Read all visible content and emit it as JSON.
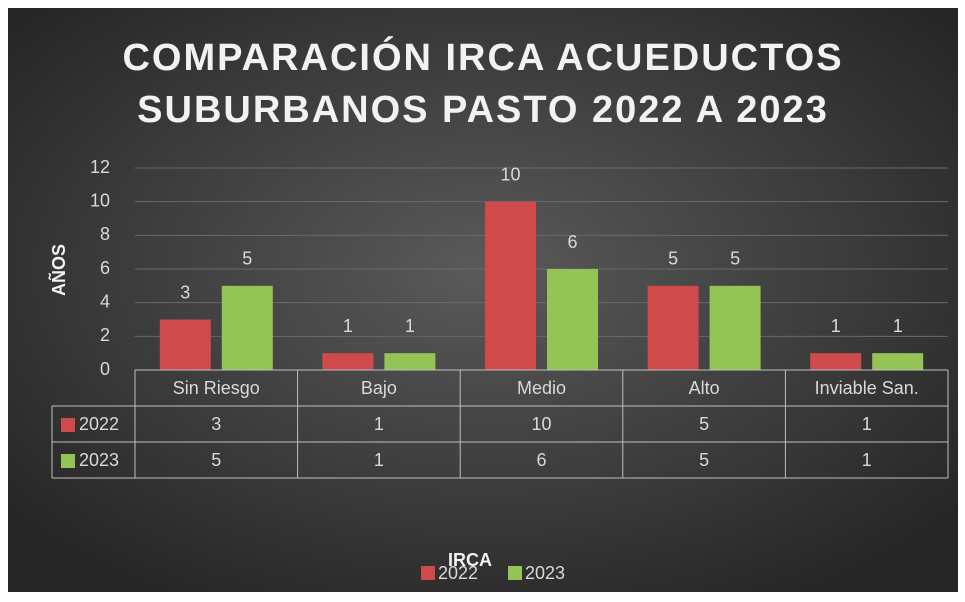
{
  "chart_data": {
    "type": "bar",
    "title": [
      "COMPARACIÓN IRCA ACUEDUCTOS",
      "SUBURBANOS PASTO 2022 A 2023"
    ],
    "x_label": "IRCA",
    "y_label": "AÑOS",
    "categories": [
      "Sin Riesgo",
      "Bajo",
      "Medio",
      "Alto",
      "Inviable San."
    ],
    "series": [
      {
        "name": "2022",
        "color": "#cf4b4b",
        "values": [
          3,
          1,
          10,
          5,
          1
        ]
      },
      {
        "name": "2023",
        "color": "#93c455",
        "values": [
          5,
          1,
          6,
          5,
          1
        ]
      }
    ],
    "ylim": [
      0,
      12
    ],
    "yticks": [
      0,
      2,
      4,
      6,
      8,
      10,
      12
    ],
    "grid": true,
    "legend": "bottom",
    "data_table": true
  }
}
